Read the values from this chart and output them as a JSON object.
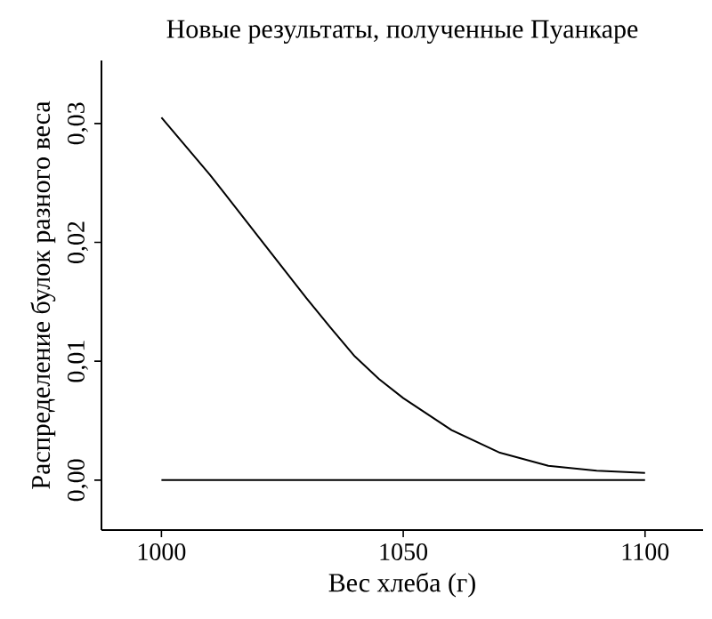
{
  "chart_data": {
    "type": "line",
    "title": "Новые результаты, полученные Пуанкаре",
    "xlabel": "Вес хлеба (г)",
    "ylabel": "Распределение булок разного веса",
    "xlim": [
      987.6,
      1112
    ],
    "ylim": [
      -0.0042,
      0.0353
    ],
    "xticks": [
      1000,
      1050,
      1100
    ],
    "yticks": [
      {
        "value": 0,
        "label": "0,00"
      },
      {
        "value": 0.01,
        "label": "0,01"
      },
      {
        "value": 0.02,
        "label": "0,02"
      },
      {
        "value": 0.03,
        "label": "0,03"
      }
    ],
    "series": [
      {
        "color": "#000000",
        "x": [
          1000,
          1005,
          1010,
          1015,
          1020,
          1025,
          1030,
          1035,
          1040,
          1045,
          1050,
          1060,
          1070,
          1080,
          1090,
          1100
        ],
        "values": [
          0.0305,
          0.0281,
          0.0257,
          0.0231,
          0.0205,
          0.0179,
          0.0153,
          0.0128,
          0.0104,
          0.0085,
          0.0069,
          0.0042,
          0.0023,
          0.0012,
          0.0008,
          0.0006
        ]
      },
      {
        "color": "#000000",
        "x": [
          1000,
          1100
        ],
        "values": [
          0,
          0
        ]
      }
    ],
    "grid": false,
    "line_style": "solid",
    "marker": "none"
  }
}
